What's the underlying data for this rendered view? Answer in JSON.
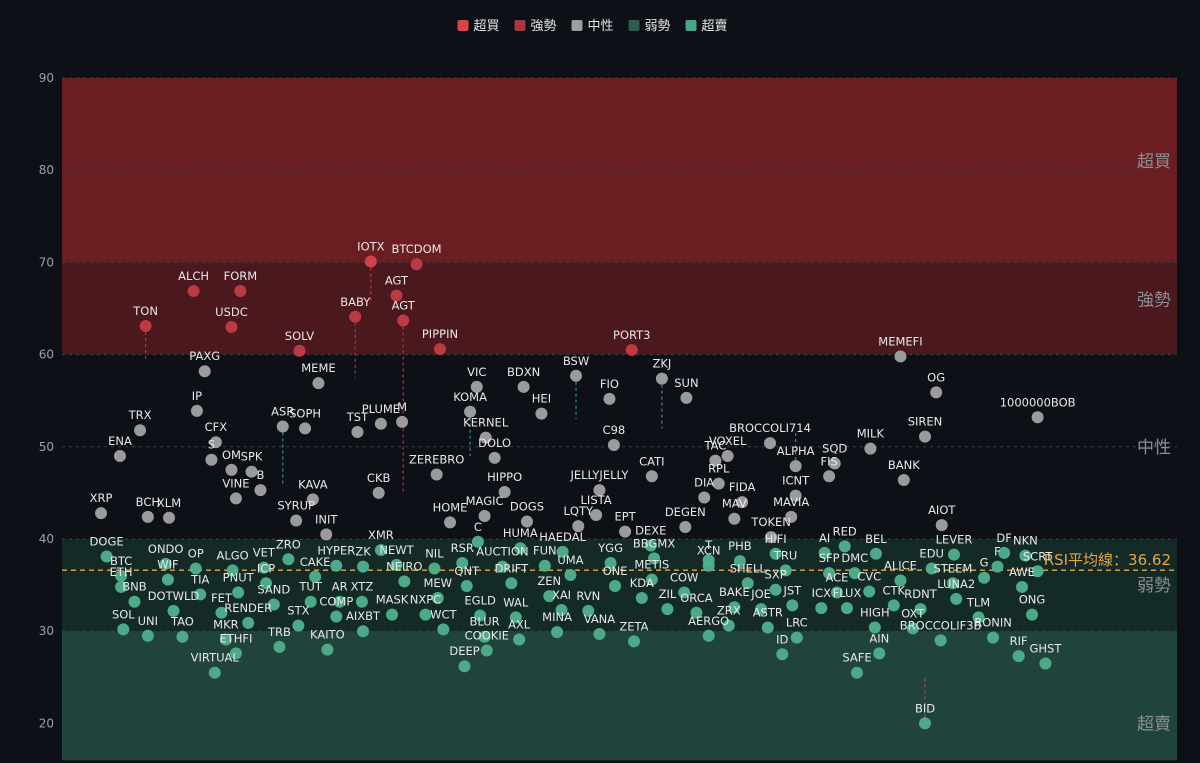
{
  "chart_data": {
    "type": "scatter",
    "title": "",
    "xlabel": "",
    "ylabel": "",
    "ylim": [
      16,
      90
    ],
    "yticks": [
      20,
      30,
      40,
      50,
      60,
      70,
      80,
      90
    ],
    "grid": true,
    "legend": {
      "placement": "top-center",
      "items": [
        {
          "key": "overbought",
          "label": "超買",
          "color": "#d9434a"
        },
        {
          "key": "strong",
          "label": "強勢",
          "color": "#a8363f"
        },
        {
          "key": "neutral",
          "label": "中性",
          "color": "#9e9e9e"
        },
        {
          "key": "weak",
          "label": "弱勢",
          "color": "#2f5b52"
        },
        {
          "key": "oversold",
          "label": "超賣",
          "color": "#46a487"
        }
      ]
    },
    "zones": [
      {
        "key": "overbought",
        "label": "超買",
        "from": 70,
        "to": 90,
        "color": "#6a1e22"
      },
      {
        "key": "strong",
        "label": "強勢",
        "from": 60,
        "to": 70,
        "color": "#4a181d"
      },
      {
        "key": "neutral",
        "label": "中性",
        "from": 40,
        "to": 60,
        "color": "#0d1117"
      },
      {
        "key": "weak",
        "label": "弱勢",
        "from": 30,
        "to": 40,
        "color": "#132a26"
      },
      {
        "key": "oversold",
        "label": "超賣",
        "from": 16,
        "to": 30,
        "color": "#20443c"
      }
    ],
    "zone_label_values": [
      81,
      66,
      50,
      35,
      20
    ],
    "average": {
      "label": "RSI平均線：36.62",
      "value": 36.62,
      "color": "#e8a547"
    },
    "points": [
      {
        "n": "IOTX",
        "x": 0.277,
        "y": 70.1,
        "p": 65.5
      },
      {
        "n": "BTCDOM",
        "x": 0.318,
        "y": 69.8
      },
      {
        "n": "ALCH",
        "x": 0.118,
        "y": 66.9
      },
      {
        "n": "FORM",
        "x": 0.16,
        "y": 66.9
      },
      {
        "n": "AGT",
        "x": 0.3,
        "y": 66.4
      },
      {
        "n": "BABY",
        "x": 0.263,
        "y": 64.1,
        "p": 57.5
      },
      {
        "n": "TON",
        "x": 0.075,
        "y": 63.1,
        "p": 59.5
      },
      {
        "n": "USDC",
        "x": 0.152,
        "y": 63.0
      },
      {
        "n": "AGT",
        "x": 0.306,
        "y": 63.7,
        "p": 45.0
      },
      {
        "n": "SOLV",
        "x": 0.213,
        "y": 60.4
      },
      {
        "n": "PIPPIN",
        "x": 0.339,
        "y": 60.6
      },
      {
        "n": "PORT3",
        "x": 0.511,
        "y": 60.5
      },
      {
        "n": "MEMEFI",
        "x": 0.752,
        "y": 59.8
      },
      {
        "n": "PAXG",
        "x": 0.128,
        "y": 58.2
      },
      {
        "n": "MEME",
        "x": 0.23,
        "y": 56.9
      },
      {
        "n": "VIC",
        "x": 0.372,
        "y": 56.5
      },
      {
        "n": "BDXN",
        "x": 0.414,
        "y": 56.5
      },
      {
        "n": "BSW",
        "x": 0.461,
        "y": 57.7,
        "p": 53.0
      },
      {
        "n": "ZKJ",
        "x": 0.538,
        "y": 57.4,
        "p": 52.0
      },
      {
        "n": "FIO",
        "x": 0.491,
        "y": 55.2
      },
      {
        "n": "SUN",
        "x": 0.56,
        "y": 55.3
      },
      {
        "n": "OG",
        "x": 0.784,
        "y": 55.9
      },
      {
        "n": "1000000BOB",
        "x": 0.875,
        "y": 53.2
      },
      {
        "n": "IP",
        "x": 0.121,
        "y": 53.9
      },
      {
        "n": "KOMA",
        "x": 0.366,
        "y": 53.8,
        "p": 49.0
      },
      {
        "n": "HEI",
        "x": 0.43,
        "y": 53.6
      },
      {
        "n": "M",
        "x": 0.305,
        "y": 52.7
      },
      {
        "n": "TST",
        "x": 0.265,
        "y": 51.6
      },
      {
        "n": "PLUME",
        "x": 0.286,
        "y": 52.5
      },
      {
        "n": "ASR",
        "x": 0.198,
        "y": 52.2,
        "p": 46.0
      },
      {
        "n": "SOPH",
        "x": 0.218,
        "y": 52.0
      },
      {
        "n": "TRX",
        "x": 0.07,
        "y": 51.8
      },
      {
        "n": "ENA",
        "x": 0.052,
        "y": 49.0
      },
      {
        "n": "CFX",
        "x": 0.138,
        "y": 50.5
      },
      {
        "n": "S",
        "x": 0.134,
        "y": 48.6
      },
      {
        "n": "OM",
        "x": 0.152,
        "y": 47.5
      },
      {
        "n": "SPK",
        "x": 0.17,
        "y": 47.3
      },
      {
        "n": "VINE",
        "x": 0.156,
        "y": 44.4
      },
      {
        "n": "B",
        "x": 0.178,
        "y": 45.3
      },
      {
        "n": "KERNEL",
        "x": 0.38,
        "y": 51.0
      },
      {
        "n": "DOLO",
        "x": 0.388,
        "y": 48.8
      },
      {
        "n": "C98",
        "x": 0.495,
        "y": 50.2
      },
      {
        "n": "CATI",
        "x": 0.529,
        "y": 46.8
      },
      {
        "n": "BROCCOLI714",
        "x": 0.635,
        "y": 50.4
      },
      {
        "n": "TAC",
        "x": 0.586,
        "y": 48.5
      },
      {
        "n": "VOXEL",
        "x": 0.597,
        "y": 49.0
      },
      {
        "n": "ALPHA",
        "x": 0.658,
        "y": 47.9,
        "p": 51.8
      },
      {
        "n": "MILK",
        "x": 0.725,
        "y": 49.8
      },
      {
        "n": "SQD",
        "x": 0.693,
        "y": 48.2
      },
      {
        "n": "SIREN",
        "x": 0.774,
        "y": 51.1
      },
      {
        "n": "FIS",
        "x": 0.688,
        "y": 46.8
      },
      {
        "n": "BANK",
        "x": 0.755,
        "y": 46.4
      },
      {
        "n": "CKB",
        "x": 0.284,
        "y": 45.0
      },
      {
        "n": "ZEREBRO",
        "x": 0.336,
        "y": 47.0
      },
      {
        "n": "JELLYJELLY",
        "x": 0.482,
        "y": 45.3
      },
      {
        "n": "HIPPO",
        "x": 0.397,
        "y": 45.1
      },
      {
        "n": "RPL",
        "x": 0.589,
        "y": 46.0
      },
      {
        "n": "DIA",
        "x": 0.576,
        "y": 44.5
      },
      {
        "n": "FIDA",
        "x": 0.61,
        "y": 44.0
      },
      {
        "n": "ICNT",
        "x": 0.658,
        "y": 44.7
      },
      {
        "n": "KAVA",
        "x": 0.225,
        "y": 44.3
      },
      {
        "n": "SYRUP",
        "x": 0.21,
        "y": 42.0
      },
      {
        "n": "XRP",
        "x": 0.035,
        "y": 42.8
      },
      {
        "n": "BCH",
        "x": 0.077,
        "y": 42.4
      },
      {
        "n": "XLM",
        "x": 0.096,
        "y": 42.3
      },
      {
        "n": "MAGIC",
        "x": 0.379,
        "y": 42.5
      },
      {
        "n": "DOGS",
        "x": 0.417,
        "y": 41.9
      },
      {
        "n": "HOME",
        "x": 0.348,
        "y": 41.8
      },
      {
        "n": "LISTA",
        "x": 0.479,
        "y": 42.6
      },
      {
        "n": "LQTY",
        "x": 0.463,
        "y": 41.4
      },
      {
        "n": "MAV",
        "x": 0.603,
        "y": 42.2
      },
      {
        "n": "MAVIA",
        "x": 0.654,
        "y": 42.4
      },
      {
        "n": "TOKEN",
        "x": 0.636,
        "y": 40.2
      },
      {
        "n": "AIOT",
        "x": 0.789,
        "y": 41.5
      },
      {
        "n": "INIT",
        "x": 0.237,
        "y": 40.5
      },
      {
        "n": "EPT",
        "x": 0.505,
        "y": 40.8
      },
      {
        "n": "DEGEN",
        "x": 0.559,
        "y": 41.3
      },
      {
        "n": "DEXE",
        "x": 0.528,
        "y": 39.3
      },
      {
        "n": "RED",
        "x": 0.702,
        "y": 39.2
      },
      {
        "n": "DF",
        "x": 0.845,
        "y": 38.5
      },
      {
        "n": "C",
        "x": 0.373,
        "y": 39.7
      },
      {
        "n": "HUMA",
        "x": 0.411,
        "y": 39.0
      },
      {
        "n": "HAEDAL",
        "x": 0.449,
        "y": 38.6
      },
      {
        "n": "BBGMX",
        "x": 0.531,
        "y": 37.9
      },
      {
        "n": "T",
        "x": 0.58,
        "y": 37.7
      },
      {
        "n": "HIFI",
        "x": 0.64,
        "y": 38.4
      },
      {
        "n": "AI",
        "x": 0.684,
        "y": 38.5
      },
      {
        "n": "BEL",
        "x": 0.73,
        "y": 38.4
      },
      {
        "n": "LEVER",
        "x": 0.8,
        "y": 38.3
      },
      {
        "n": "NKN",
        "x": 0.864,
        "y": 38.2
      },
      {
        "n": "DOGE",
        "x": 0.04,
        "y": 38.1
      },
      {
        "n": "ZRO",
        "x": 0.203,
        "y": 37.8
      },
      {
        "n": "XMR",
        "x": 0.286,
        "y": 38.8
      },
      {
        "n": "HYPER",
        "x": 0.246,
        "y": 37.1
      },
      {
        "n": "ZK",
        "x": 0.27,
        "y": 37.0
      },
      {
        "n": "NEWT",
        "x": 0.3,
        "y": 37.2
      },
      {
        "n": "ONDO",
        "x": 0.093,
        "y": 37.3
      },
      {
        "n": "VET",
        "x": 0.181,
        "y": 36.9
      },
      {
        "n": "ALGO",
        "x": 0.153,
        "y": 36.6
      },
      {
        "n": "OP",
        "x": 0.12,
        "y": 36.8
      },
      {
        "n": "PHB",
        "x": 0.608,
        "y": 37.6
      },
      {
        "n": "XCN",
        "x": 0.58,
        "y": 37.1
      },
      {
        "n": "YGG",
        "x": 0.492,
        "y": 37.4
      },
      {
        "n": "RSR",
        "x": 0.359,
        "y": 37.4
      },
      {
        "n": "AUCTION",
        "x": 0.395,
        "y": 37.0
      },
      {
        "n": "FUN",
        "x": 0.433,
        "y": 37.1
      },
      {
        "n": "NIL",
        "x": 0.334,
        "y": 36.8
      },
      {
        "n": "TRU",
        "x": 0.649,
        "y": 36.6
      },
      {
        "n": "SFP",
        "x": 0.688,
        "y": 36.3
      },
      {
        "n": "DMC",
        "x": 0.711,
        "y": 36.3
      },
      {
        "n": "EDU",
        "x": 0.78,
        "y": 36.8
      },
      {
        "n": "F",
        "x": 0.839,
        "y": 37.0
      },
      {
        "n": "SCRT",
        "x": 0.875,
        "y": 36.5
      },
      {
        "n": "BTC",
        "x": 0.053,
        "y": 36.0
      },
      {
        "n": "WIF",
        "x": 0.095,
        "y": 35.6
      },
      {
        "n": "CAKE",
        "x": 0.227,
        "y": 35.9
      },
      {
        "n": "UMA",
        "x": 0.456,
        "y": 36.1
      },
      {
        "n": "METIS",
        "x": 0.529,
        "y": 35.6
      },
      {
        "n": "DRIFT",
        "x": 0.403,
        "y": 35.2
      },
      {
        "n": "NEIRO",
        "x": 0.307,
        "y": 35.4
      },
      {
        "n": "ICP",
        "x": 0.183,
        "y": 35.2
      },
      {
        "n": "QNT",
        "x": 0.363,
        "y": 34.9
      },
      {
        "n": "ONE",
        "x": 0.496,
        "y": 34.9
      },
      {
        "n": "SHELL",
        "x": 0.615,
        "y": 35.2
      },
      {
        "n": "ALICE",
        "x": 0.752,
        "y": 35.5
      },
      {
        "n": "STEEM",
        "x": 0.799,
        "y": 35.2
      },
      {
        "n": "G",
        "x": 0.827,
        "y": 35.8
      },
      {
        "n": "AWE",
        "x": 0.861,
        "y": 34.8
      },
      {
        "n": "ETH",
        "x": 0.053,
        "y": 34.8
      },
      {
        "n": "TIA",
        "x": 0.124,
        "y": 34.0
      },
      {
        "n": "PNUT",
        "x": 0.158,
        "y": 34.2
      },
      {
        "n": "ZEN",
        "x": 0.437,
        "y": 33.8
      },
      {
        "n": "COW",
        "x": 0.558,
        "y": 34.2
      },
      {
        "n": "KDA",
        "x": 0.52,
        "y": 33.6
      },
      {
        "n": "SXP",
        "x": 0.64,
        "y": 34.5
      },
      {
        "n": "ACE",
        "x": 0.695,
        "y": 34.2
      },
      {
        "n": "CVC",
        "x": 0.724,
        "y": 34.3
      },
      {
        "n": "LUNA2",
        "x": 0.802,
        "y": 33.5
      },
      {
        "n": "MEW",
        "x": 0.337,
        "y": 33.6
      },
      {
        "n": "AR",
        "x": 0.249,
        "y": 33.2
      },
      {
        "n": "XTZ",
        "x": 0.269,
        "y": 33.2
      },
      {
        "n": "TUT",
        "x": 0.223,
        "y": 33.2
      },
      {
        "n": "SAND",
        "x": 0.19,
        "y": 32.9
      },
      {
        "n": "BNB",
        "x": 0.065,
        "y": 33.2
      },
      {
        "n": "JST",
        "x": 0.655,
        "y": 32.8
      },
      {
        "n": "CTK",
        "x": 0.746,
        "y": 32.8
      },
      {
        "n": "JOE",
        "x": 0.627,
        "y": 32.4
      },
      {
        "n": "BAKE",
        "x": 0.603,
        "y": 32.6
      },
      {
        "n": "ICX",
        "x": 0.681,
        "y": 32.5
      },
      {
        "n": "FLUX",
        "x": 0.704,
        "y": 32.5
      },
      {
        "n": "RDNT",
        "x": 0.77,
        "y": 32.4
      },
      {
        "n": "DOTWLD",
        "x": 0.1,
        "y": 32.2
      },
      {
        "n": "FET",
        "x": 0.143,
        "y": 32.0
      },
      {
        "n": "XAI",
        "x": 0.448,
        "y": 32.3
      },
      {
        "n": "RVN",
        "x": 0.472,
        "y": 32.2
      },
      {
        "n": "ZIL",
        "x": 0.543,
        "y": 32.4
      },
      {
        "n": "ORCA",
        "x": 0.569,
        "y": 32.0
      },
      {
        "n": "MASK",
        "x": 0.296,
        "y": 31.8
      },
      {
        "n": "NXPC",
        "x": 0.326,
        "y": 31.8
      },
      {
        "n": "EGLD",
        "x": 0.375,
        "y": 31.7
      },
      {
        "n": "WAL",
        "x": 0.407,
        "y": 31.5
      },
      {
        "n": "COMP",
        "x": 0.246,
        "y": 31.6
      },
      {
        "n": "TLM",
        "x": 0.822,
        "y": 31.5
      },
      {
        "n": "ONG",
        "x": 0.87,
        "y": 31.8
      },
      {
        "n": "RENDER",
        "x": 0.167,
        "y": 30.9
      },
      {
        "n": "STX",
        "x": 0.212,
        "y": 30.6
      },
      {
        "n": "ZRX",
        "x": 0.598,
        "y": 30.6
      },
      {
        "n": "ASTR",
        "x": 0.633,
        "y": 30.4
      },
      {
        "n": "HIGH",
        "x": 0.729,
        "y": 30.4
      },
      {
        "n": "OXT",
        "x": 0.763,
        "y": 30.3
      },
      {
        "n": "WCT",
        "x": 0.342,
        "y": 30.2
      },
      {
        "n": "AIXBT",
        "x": 0.27,
        "y": 30.0
      },
      {
        "n": "SOL",
        "x": 0.055,
        "y": 30.2
      },
      {
        "n": "MINA",
        "x": 0.444,
        "y": 29.9
      },
      {
        "n": "BLUR",
        "x": 0.379,
        "y": 29.4
      },
      {
        "n": "VANA",
        "x": 0.482,
        "y": 29.7
      },
      {
        "n": "UNI",
        "x": 0.077,
        "y": 29.5
      },
      {
        "n": "TAO",
        "x": 0.108,
        "y": 29.4
      },
      {
        "n": "AERGO",
        "x": 0.58,
        "y": 29.5
      },
      {
        "n": "LRC",
        "x": 0.659,
        "y": 29.3
      },
      {
        "n": "RONIN",
        "x": 0.835,
        "y": 29.3
      },
      {
        "n": "MKR",
        "x": 0.147,
        "y": 29.1
      },
      {
        "n": "AXL",
        "x": 0.41,
        "y": 29.1
      },
      {
        "n": "BROCCOLIF3B",
        "x": 0.788,
        "y": 29.0
      },
      {
        "n": "ZETA",
        "x": 0.513,
        "y": 28.9
      },
      {
        "n": "TRB",
        "x": 0.195,
        "y": 28.3
      },
      {
        "n": "KAITO",
        "x": 0.238,
        "y": 28.0
      },
      {
        "n": "COOKIE",
        "x": 0.381,
        "y": 27.9
      },
      {
        "n": "ETHFI",
        "x": 0.156,
        "y": 27.6
      },
      {
        "n": "AIN",
        "x": 0.733,
        "y": 27.6
      },
      {
        "n": "ID",
        "x": 0.646,
        "y": 27.5
      },
      {
        "n": "RIF",
        "x": 0.858,
        "y": 27.3
      },
      {
        "n": "GHST",
        "x": 0.882,
        "y": 26.5
      },
      {
        "n": "DEEP",
        "x": 0.361,
        "y": 26.2
      },
      {
        "n": "VIRTUAL",
        "x": 0.137,
        "y": 25.5
      },
      {
        "n": "SAFE",
        "x": 0.713,
        "y": 25.5
      },
      {
        "n": "BID",
        "x": 0.774,
        "y": 20.0,
        "p": 25.0
      }
    ]
  }
}
